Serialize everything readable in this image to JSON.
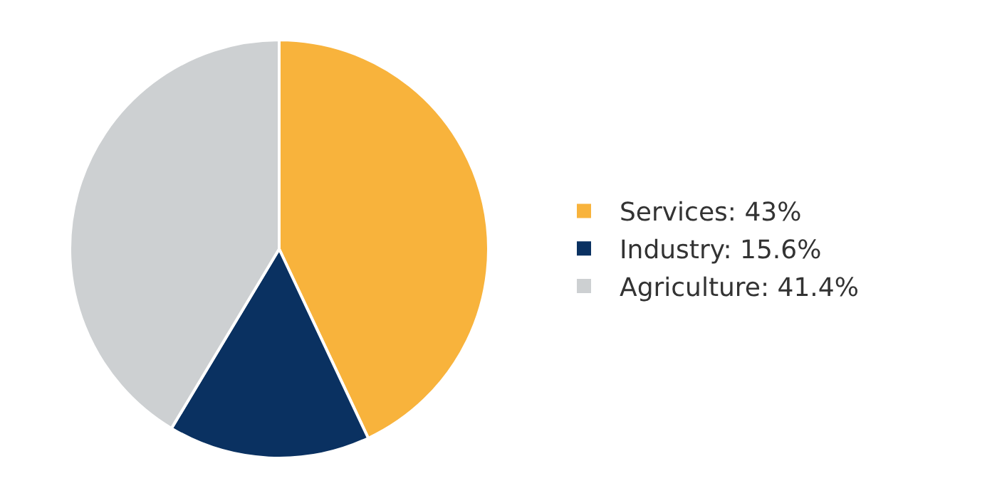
{
  "chart_data": {
    "type": "pie",
    "categories": [
      "Services: 43%",
      "Industry: 15.6%",
      "Agriculture: 41.4%"
    ],
    "values": [
      43,
      15.6,
      41.4
    ],
    "colors": [
      "#f8b33c",
      "#0a3161",
      "#cdd0d2"
    ],
    "legend": "right"
  }
}
